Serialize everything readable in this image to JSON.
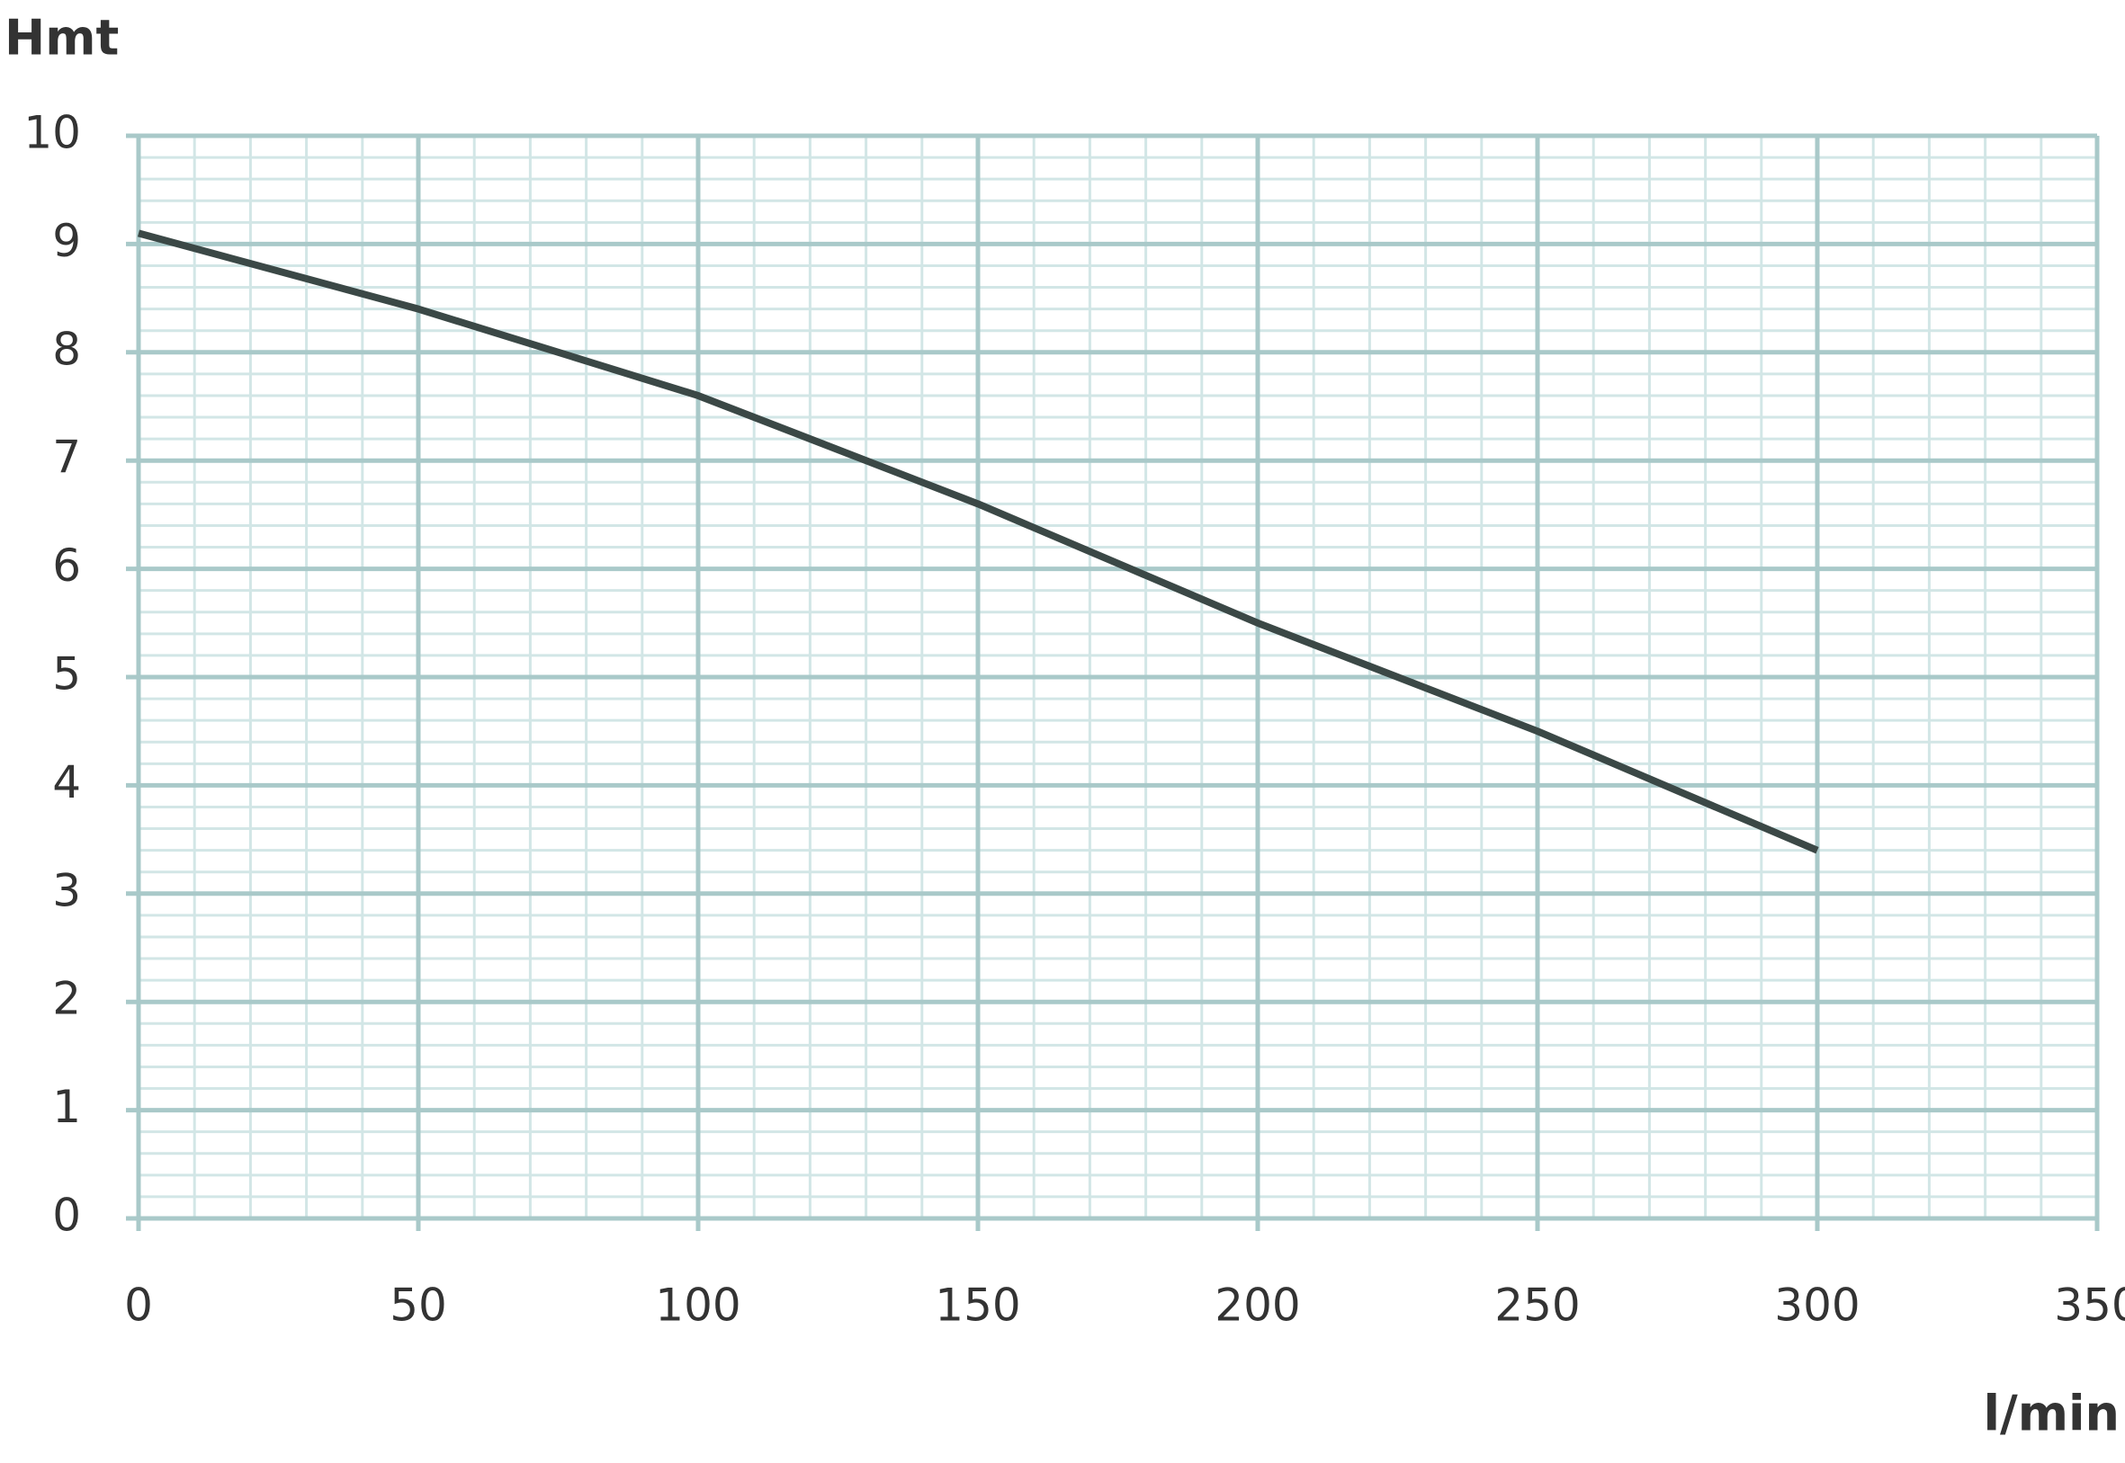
{
  "chart_data": {
    "type": "line",
    "y_label": "Hmt",
    "x_label": "l/min",
    "x": [
      0,
      50,
      100,
      150,
      200,
      250,
      300
    ],
    "series": [
      {
        "name": "Hmt",
        "color": "#3b4846",
        "values": [
          9.1,
          8.4,
          7.6,
          6.6,
          5.5,
          4.5,
          3.4
        ]
      }
    ],
    "xlim": [
      0,
      350
    ],
    "xticks": [
      0,
      50,
      100,
      150,
      200,
      250,
      300,
      350
    ],
    "ylim": [
      0,
      10
    ],
    "yticks": [
      0,
      1,
      2,
      3,
      4,
      5,
      6,
      7,
      8,
      9,
      10
    ],
    "grid": true,
    "grid_color": "#a9c9c9",
    "minor_grid_color": "#d2e6e6"
  }
}
